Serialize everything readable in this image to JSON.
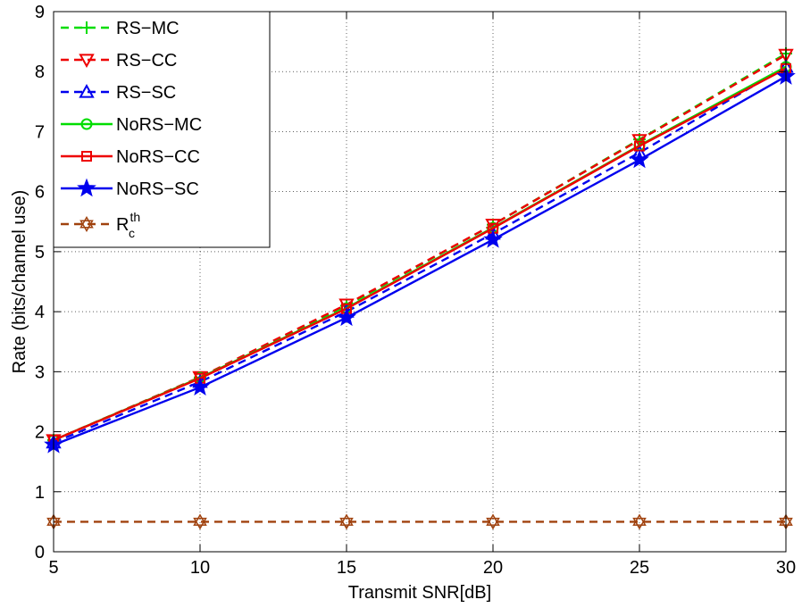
{
  "chart_data": {
    "type": "line",
    "xlabel": "Transmit SNR[dB]",
    "ylabel": "Rate (bits/channel use)",
    "xlim": [
      5,
      30
    ],
    "ylim": [
      0,
      9
    ],
    "xticks": [
      5,
      10,
      15,
      20,
      25,
      30
    ],
    "yticks": [
      0,
      1,
      2,
      3,
      4,
      5,
      6,
      7,
      8,
      9
    ],
    "grid": true,
    "legend_position": "top-left",
    "x": [
      5,
      10,
      15,
      20,
      25,
      30
    ],
    "series": [
      {
        "name": "RS−MC",
        "values": [
          1.86,
          2.9,
          4.1,
          5.45,
          6.87,
          8.3
        ],
        "color": "#00dd00",
        "dash": "dashed",
        "marker": "plus"
      },
      {
        "name": "RS−CC",
        "values": [
          1.86,
          2.91,
          4.12,
          5.45,
          6.86,
          8.28
        ],
        "color": "#ee0000",
        "dash": "dashed",
        "marker": "triangle-down"
      },
      {
        "name": "RS−SC",
        "values": [
          1.82,
          2.83,
          4.0,
          5.3,
          6.65,
          8.08
        ],
        "color": "#0000ee",
        "dash": "dashed",
        "marker": "triangle-up"
      },
      {
        "name": "NoRS−MC",
        "values": [
          1.86,
          2.9,
          4.06,
          5.4,
          6.77,
          8.08
        ],
        "color": "#00dd00",
        "dash": "solid",
        "marker": "circle"
      },
      {
        "name": "NoRS−CC",
        "values": [
          1.86,
          2.89,
          4.05,
          5.39,
          6.76,
          8.05
        ],
        "color": "#ee0000",
        "dash": "solid",
        "marker": "square"
      },
      {
        "name": "NoRS−SC",
        "values": [
          1.78,
          2.74,
          3.9,
          5.2,
          6.53,
          7.92
        ],
        "color": "#0000ee",
        "dash": "solid",
        "marker": "star"
      },
      {
        "name": "R",
        "name_sub": "c",
        "name_sup": "th",
        "values": [
          0.5,
          0.5,
          0.5,
          0.5,
          0.5,
          0.5
        ],
        "color": "#a0420e",
        "dash": "dashed",
        "marker": "hexagram"
      }
    ]
  }
}
